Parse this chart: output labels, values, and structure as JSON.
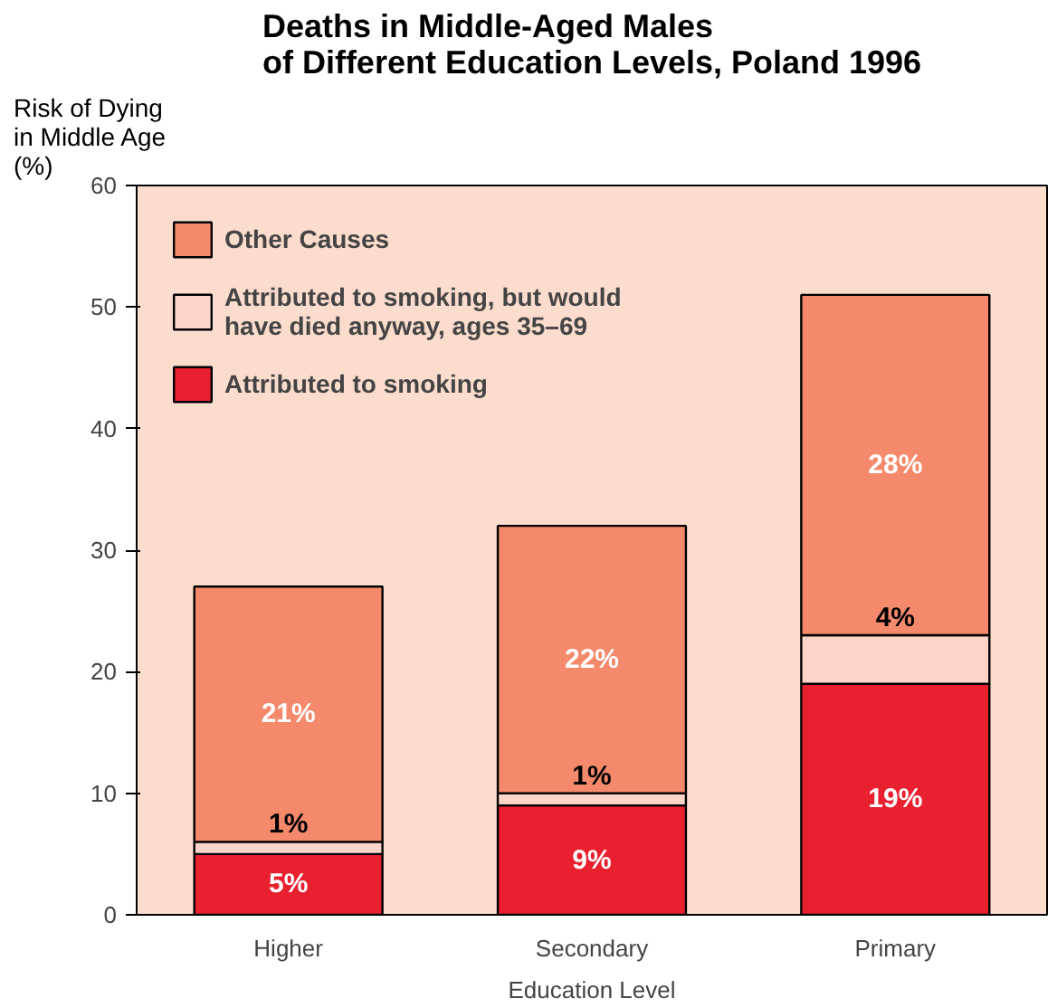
{
  "chart_data": {
    "type": "bar",
    "stacked": true,
    "title": "Deaths in Middle-Aged Males\nof Different Education Levels, Poland 1996",
    "ylabel": "Risk of Dying\nin Middle Age\n(%)",
    "xlabel": "Education Level",
    "categories": [
      "Higher",
      "Secondary",
      "Primary"
    ],
    "series": [
      {
        "name": "Attributed to smoking",
        "color": "#e8202f",
        "values": [
          5,
          9,
          19
        ],
        "value_labels": [
          "5%",
          "9%",
          "19%"
        ]
      },
      {
        "name": "Attributed to smoking, but would\nhave died anyway, ages 35–69",
        "color": "#fcd5c8",
        "values": [
          1,
          1,
          4
        ],
        "value_labels": [
          "1%",
          "1%",
          "4%"
        ]
      },
      {
        "name": "Other Causes",
        "color": "#f4896b",
        "values": [
          21,
          22,
          28
        ],
        "value_labels": [
          "21%",
          "22%",
          "28%"
        ]
      }
    ],
    "ylim": [
      0,
      60
    ],
    "yticks": [
      0,
      10,
      20,
      30,
      40,
      50,
      60
    ],
    "grid": false,
    "legend": "top left"
  }
}
